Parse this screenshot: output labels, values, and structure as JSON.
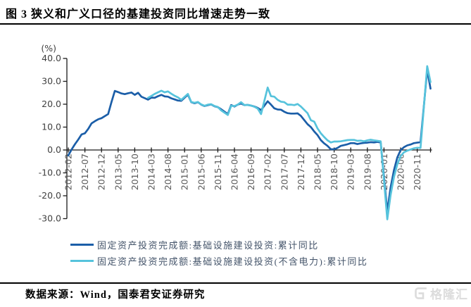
{
  "header": {
    "title": "图 3 狭义和广义口径的基建投资同比增速走势一致"
  },
  "footer": {
    "source": "数据来源：Wind，国泰君安证券研究",
    "watermark": "格隆汇"
  },
  "chart_data": {
    "type": "line",
    "title": "",
    "unit_label": "(%)",
    "ylabel": "(%)",
    "xlabel": "",
    "ylim": [
      -30,
      40
    ],
    "grid": false,
    "legend_position": "bottom",
    "y_ticks": [
      "40.0",
      "30.0",
      "20.0",
      "10.0",
      "0.0",
      "-10.0",
      "-20.0",
      "-30.0"
    ],
    "x_tick_labels": [
      "2012-02",
      "2012-07",
      "2012-12",
      "2013-05",
      "2013-10",
      "2014-03",
      "2014-08",
      "2015-01",
      "2015-06",
      "2015-11",
      "2016-04",
      "2016-09",
      "2017-02",
      "2017-07",
      "2017-12",
      "2018-05",
      "2018-10",
      "2019-03",
      "2019-08",
      "2020-01",
      "2020-06",
      "2020-11"
    ],
    "x_range": [
      "2012-02",
      "2021-03"
    ],
    "axis_color": "#1a1a1a",
    "tick_label_color": "#595959",
    "series": [
      {
        "name": "固定资产投资完成额:基础设施建设投资:累计同比",
        "color": "#1B5EA8",
        "data": [
          [
            "2012-02",
            -2.4
          ],
          [
            "2012-03",
            0.2
          ],
          [
            "2012-04",
            2.5
          ],
          [
            "2012-05",
            4.6
          ],
          [
            "2012-06",
            6.8
          ],
          [
            "2012-07",
            7.3
          ],
          [
            "2012-08",
            9.2
          ],
          [
            "2012-09",
            11.6
          ],
          [
            "2012-10",
            12.6
          ],
          [
            "2012-11",
            13.4
          ],
          [
            "2012-12",
            13.9
          ],
          [
            "2013-02",
            15.7
          ],
          [
            "2013-03",
            21.0
          ],
          [
            "2013-04",
            25.8
          ],
          [
            "2013-05",
            25.3
          ],
          [
            "2013-06",
            24.7
          ],
          [
            "2013-07",
            24.4
          ],
          [
            "2013-08",
            24.8
          ],
          [
            "2013-09",
            25.1
          ],
          [
            "2013-10",
            24.1
          ],
          [
            "2013-11",
            25.0
          ],
          [
            "2013-12",
            23.3
          ],
          [
            "2014-02",
            22.0
          ],
          [
            "2014-03",
            22.9
          ],
          [
            "2014-04",
            22.8
          ],
          [
            "2014-05",
            23.5
          ],
          [
            "2014-06",
            24.1
          ],
          [
            "2014-07",
            23.4
          ],
          [
            "2014-08",
            23.3
          ],
          [
            "2014-09",
            22.6
          ],
          [
            "2014-10",
            22.1
          ],
          [
            "2014-11",
            21.6
          ],
          [
            "2014-12",
            21.5
          ],
          [
            "2015-02",
            24.2
          ],
          [
            "2015-03",
            20.9
          ],
          [
            "2015-04",
            20.4
          ],
          [
            "2015-05",
            20.9
          ],
          [
            "2015-06",
            19.8
          ],
          [
            "2015-07",
            19.2
          ],
          [
            "2015-08",
            19.6
          ],
          [
            "2015-09",
            19.9
          ],
          [
            "2015-10",
            19.1
          ],
          [
            "2015-11",
            18.7
          ],
          [
            "2015-12",
            17.8
          ],
          [
            "2016-02",
            15.7
          ],
          [
            "2016-03",
            19.6
          ],
          [
            "2016-04",
            19.0
          ],
          [
            "2016-05",
            19.8
          ],
          [
            "2016-06",
            20.3
          ],
          [
            "2016-07",
            19.6
          ],
          [
            "2016-08",
            19.7
          ],
          [
            "2016-09",
            19.4
          ],
          [
            "2016-10",
            19.0
          ],
          [
            "2016-11",
            18.4
          ],
          [
            "2016-12",
            17.4
          ],
          [
            "2017-02",
            21.3
          ],
          [
            "2017-03",
            19.8
          ],
          [
            "2017-04",
            18.2
          ],
          [
            "2017-05",
            17.7
          ],
          [
            "2017-06",
            17.6
          ],
          [
            "2017-07",
            16.7
          ],
          [
            "2017-08",
            16.1
          ],
          [
            "2017-09",
            15.9
          ],
          [
            "2017-10",
            15.9
          ],
          [
            "2017-11",
            16.0
          ],
          [
            "2017-12",
            14.9
          ],
          [
            "2018-02",
            11.3
          ],
          [
            "2018-03",
            10.0
          ],
          [
            "2018-04",
            8.1
          ],
          [
            "2018-05",
            6.5
          ],
          [
            "2018-06",
            4.3
          ],
          [
            "2018-07",
            2.9
          ],
          [
            "2018-08",
            1.8
          ],
          [
            "2018-09",
            0.3
          ],
          [
            "2018-10",
            0.3
          ],
          [
            "2018-11",
            0.9
          ],
          [
            "2018-12",
            1.8
          ],
          [
            "2019-02",
            2.5
          ],
          [
            "2019-03",
            3.0
          ],
          [
            "2019-04",
            3.0
          ],
          [
            "2019-05",
            2.6
          ],
          [
            "2019-06",
            2.9
          ],
          [
            "2019-07",
            3.1
          ],
          [
            "2019-08",
            3.2
          ],
          [
            "2019-09",
            3.4
          ],
          [
            "2019-10",
            3.3
          ],
          [
            "2019-11",
            3.5
          ],
          [
            "2019-12",
            3.3
          ],
          [
            "2020-02",
            -26.9
          ],
          [
            "2020-03",
            -16.4
          ],
          [
            "2020-04",
            -8.8
          ],
          [
            "2020-05",
            -3.3
          ],
          [
            "2020-06",
            -0.1
          ],
          [
            "2020-07",
            1.2
          ],
          [
            "2020-08",
            2.0
          ],
          [
            "2020-09",
            2.4
          ],
          [
            "2020-10",
            3.0
          ],
          [
            "2020-11",
            3.2
          ],
          [
            "2020-12",
            3.4
          ],
          [
            "2021-02",
            35.0
          ],
          [
            "2021-03",
            26.8
          ]
        ]
      },
      {
        "name": "固定资产投资完成额:基础设施建设投资(不含电力):累计同比",
        "color": "#56C3DC",
        "data": [
          [
            "2014-02",
            22.8
          ],
          [
            "2014-03",
            23.6
          ],
          [
            "2014-04",
            24.5
          ],
          [
            "2014-05",
            25.2
          ],
          [
            "2014-06",
            25.9
          ],
          [
            "2014-07",
            25.2
          ],
          [
            "2014-08",
            25.6
          ],
          [
            "2014-09",
            24.6
          ],
          [
            "2014-10",
            23.7
          ],
          [
            "2014-11",
            23.0
          ],
          [
            "2014-12",
            21.9
          ],
          [
            "2015-02",
            24.5
          ],
          [
            "2015-03",
            21.0
          ],
          [
            "2015-04",
            20.6
          ],
          [
            "2015-05",
            21.0
          ],
          [
            "2015-06",
            19.9
          ],
          [
            "2015-07",
            19.3
          ],
          [
            "2015-08",
            19.8
          ],
          [
            "2015-09",
            20.0
          ],
          [
            "2015-10",
            19.2
          ],
          [
            "2015-11",
            18.8
          ],
          [
            "2015-12",
            17.3
          ],
          [
            "2016-02",
            15.3
          ],
          [
            "2016-03",
            19.3
          ],
          [
            "2016-04",
            19.2
          ],
          [
            "2016-05",
            19.8
          ],
          [
            "2016-06",
            20.9
          ],
          [
            "2016-07",
            19.6
          ],
          [
            "2016-08",
            19.7
          ],
          [
            "2016-09",
            19.4
          ],
          [
            "2016-10",
            18.9
          ],
          [
            "2016-11",
            18.1
          ],
          [
            "2016-12",
            15.7
          ],
          [
            "2017-02",
            27.3
          ],
          [
            "2017-03",
            23.5
          ],
          [
            "2017-04",
            23.3
          ],
          [
            "2017-05",
            21.9
          ],
          [
            "2017-06",
            21.1
          ],
          [
            "2017-07",
            20.9
          ],
          [
            "2017-08",
            19.8
          ],
          [
            "2017-09",
            19.8
          ],
          [
            "2017-10",
            19.6
          ],
          [
            "2017-11",
            20.1
          ],
          [
            "2017-12",
            19.0
          ],
          [
            "2018-02",
            16.1
          ],
          [
            "2018-03",
            13.0
          ],
          [
            "2018-04",
            12.4
          ],
          [
            "2018-05",
            9.4
          ],
          [
            "2018-06",
            7.3
          ],
          [
            "2018-07",
            5.7
          ],
          [
            "2018-08",
            4.2
          ],
          [
            "2018-09",
            3.3
          ],
          [
            "2018-10",
            3.7
          ],
          [
            "2018-11",
            3.7
          ],
          [
            "2018-12",
            3.8
          ],
          [
            "2019-02",
            4.3
          ],
          [
            "2019-03",
            4.4
          ],
          [
            "2019-04",
            4.4
          ],
          [
            "2019-05",
            4.0
          ],
          [
            "2019-06",
            4.1
          ],
          [
            "2019-07",
            3.8
          ],
          [
            "2019-08",
            4.2
          ],
          [
            "2019-09",
            4.5
          ],
          [
            "2019-10",
            4.2
          ],
          [
            "2019-11",
            4.0
          ],
          [
            "2019-12",
            3.8
          ],
          [
            "2020-02",
            -30.3
          ],
          [
            "2020-03",
            -19.7
          ],
          [
            "2020-04",
            -11.8
          ],
          [
            "2020-05",
            -6.3
          ],
          [
            "2020-06",
            -2.7
          ],
          [
            "2020-07",
            -1.0
          ],
          [
            "2020-08",
            -0.3
          ],
          [
            "2020-09",
            0.2
          ],
          [
            "2020-10",
            0.7
          ],
          [
            "2020-11",
            1.0
          ],
          [
            "2020-12",
            0.9
          ],
          [
            "2021-02",
            36.6
          ],
          [
            "2021-03",
            29.7
          ]
        ]
      }
    ]
  }
}
